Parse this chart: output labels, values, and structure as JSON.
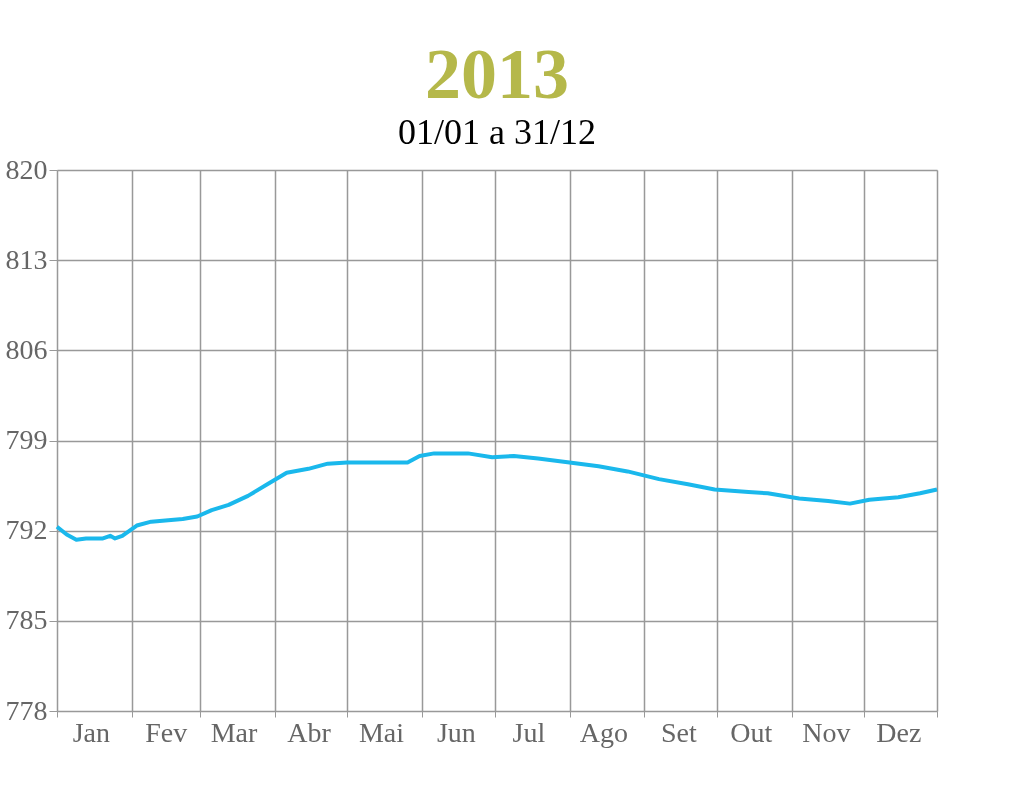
{
  "chart_data": {
    "type": "line",
    "title": "2013",
    "subtitle": "01/01 a 31/12",
    "x": [
      "2013-01-01",
      "2013-01-05",
      "2013-01-09",
      "2013-01-13",
      "2013-01-20",
      "2013-01-23",
      "2013-01-25",
      "2013-01-28",
      "2013-02-03",
      "2013-02-09",
      "2013-02-16",
      "2013-02-22",
      "2013-02-28",
      "2013-03-06",
      "2013-03-13",
      "2013-03-21",
      "2013-03-29",
      "2013-04-06",
      "2013-04-15",
      "2013-04-23",
      "2013-05-01",
      "2013-05-10",
      "2013-05-26",
      "2013-05-31",
      "2013-06-06",
      "2013-06-20",
      "2013-06-30",
      "2013-07-09",
      "2013-07-19",
      "2013-08-01",
      "2013-08-13",
      "2013-08-25",
      "2013-09-07",
      "2013-09-19",
      "2013-09-30",
      "2013-10-14",
      "2013-10-22",
      "2013-11-04",
      "2013-11-16",
      "2013-11-25",
      "2013-12-03",
      "2013-12-15",
      "2013-12-24",
      "2013-12-31"
    ],
    "series": [
      {
        "color": "#1ab8ec",
        "values": [
          792.3,
          791.7,
          791.3,
          791.4,
          791.4,
          791.6,
          791.4,
          791.6,
          792.4,
          792.7,
          792.8,
          792.9,
          793.1,
          793.6,
          794.0,
          794.7,
          795.6,
          796.5,
          796.8,
          797.2,
          797.3,
          797.3,
          797.3,
          797.8,
          798.0,
          798.0,
          797.7,
          797.8,
          797.6,
          797.3,
          797.0,
          796.6,
          796.0,
          795.6,
          795.2,
          795.0,
          794.9,
          794.5,
          794.3,
          794.1,
          794.4,
          794.6,
          794.9,
          795.2
        ]
      }
    ],
    "xlim": [
      "2013-01-01",
      "2013-12-31"
    ],
    "xticks": [
      {
        "value": "2013-01-01",
        "label": null
      },
      {
        "value": "2013-01-15",
        "label": "Jan"
      },
      {
        "value": "2013-02-01",
        "label": null
      },
      {
        "value": "2013-02-15",
        "label": "Fev"
      },
      {
        "value": "2013-03-01",
        "label": null
      },
      {
        "value": "2013-03-15",
        "label": "Mar"
      },
      {
        "value": "2013-04-01",
        "label": null
      },
      {
        "value": "2013-04-15",
        "label": "Abr"
      },
      {
        "value": "2013-05-01",
        "label": null
      },
      {
        "value": "2013-05-15",
        "label": "Mai"
      },
      {
        "value": "2013-06-01",
        "label": null
      },
      {
        "value": "2013-06-15",
        "label": "Jun"
      },
      {
        "value": "2013-07-01",
        "label": null
      },
      {
        "value": "2013-07-15",
        "label": "Jul"
      },
      {
        "value": "2013-08-01",
        "label": null
      },
      {
        "value": "2013-08-15",
        "label": "Ago"
      },
      {
        "value": "2013-09-01",
        "label": null
      },
      {
        "value": "2013-09-15",
        "label": "Set"
      },
      {
        "value": "2013-10-01",
        "label": null
      },
      {
        "value": "2013-10-15",
        "label": "Out"
      },
      {
        "value": "2013-11-01",
        "label": null
      },
      {
        "value": "2013-11-15",
        "label": "Nov"
      },
      {
        "value": "2013-12-01",
        "label": null
      },
      {
        "value": "2013-12-15",
        "label": "Dez"
      },
      {
        "value": "2013-12-31",
        "label": null
      }
    ],
    "ylim": [
      778,
      820
    ],
    "yticks": [
      778,
      785,
      792,
      799,
      806,
      813,
      820
    ],
    "grid": true,
    "marker": "none",
    "line_style": "solid"
  }
}
